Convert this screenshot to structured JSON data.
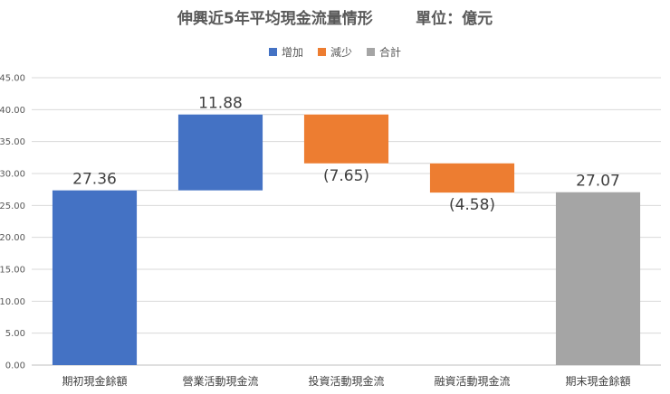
{
  "title": "伸興近5年平均現金流量情形        單位：億元",
  "legend": [
    {
      "label": "增加",
      "color": "#4472C4"
    },
    {
      "label": "減少",
      "color": "#ED7D31"
    },
    {
      "label": "合計",
      "color": "#A5A5A5"
    }
  ],
  "chart_data": {
    "type": "bar",
    "subtype": "waterfall",
    "categories": [
      "期初現金餘額",
      "營業活動現金流",
      "投資活動現金流",
      "融資活動現金流",
      "期末現金餘額"
    ],
    "values": [
      27.36,
      11.88,
      -7.65,
      -4.58,
      27.07
    ],
    "kinds": [
      "increase",
      "increase",
      "decrease",
      "decrease",
      "total"
    ],
    "data_labels": [
      "27.36",
      "11.88",
      "(7.65)",
      "(4.58)",
      "27.07"
    ],
    "ylim": [
      0,
      45
    ],
    "yticks": [
      "0.00",
      "5.00",
      "10.00",
      "15.00",
      "20.00",
      "25.00",
      "30.00",
      "35.00",
      "40.00",
      "45.00"
    ],
    "grid": true,
    "legend_position": "top",
    "colors": {
      "increase": "#4472C4",
      "decrease": "#ED7D31",
      "total": "#A5A5A5"
    }
  }
}
